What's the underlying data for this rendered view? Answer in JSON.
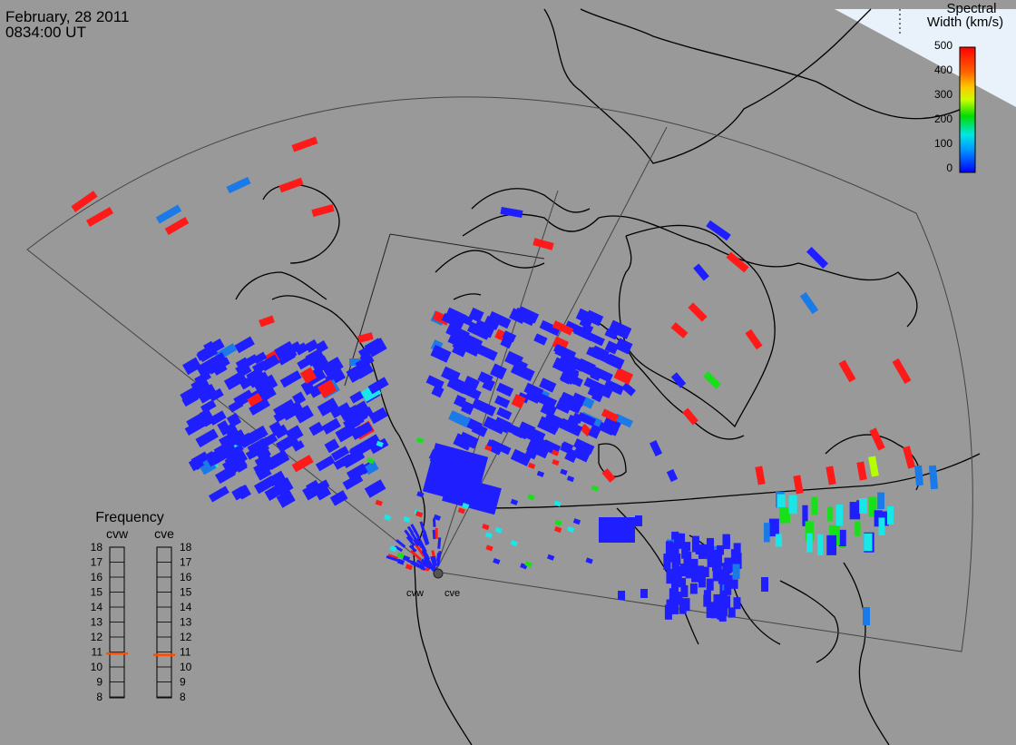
{
  "timestamp": {
    "date": "February, 28 2011",
    "time": "0834:00 UT"
  },
  "colors": {
    "background": "#999999",
    "ice": "#e9f2fa",
    "coast": "#000000"
  },
  "colorbar": {
    "title_line1": "Spectral",
    "title_line2": "Width (km/s)",
    "ticks": [
      "500",
      "400",
      "300",
      "200",
      "100",
      "0"
    ],
    "gradient": [
      "#0000ff",
      "#0096ff",
      "#00e6e6",
      "#00dc00",
      "#c8ff00",
      "#ffc800",
      "#ff6400",
      "#ff0000"
    ]
  },
  "radars": [
    {
      "code": "cvw"
    },
    {
      "code": "cve"
    }
  ],
  "frequency": {
    "title": "Frequency",
    "columns": [
      "cvw",
      "cve"
    ],
    "ticks": [
      "18",
      "17",
      "16",
      "15",
      "14",
      "13",
      "12",
      "11",
      "10",
      "9",
      "8"
    ],
    "values_mhz": [
      10.9,
      10.8
    ],
    "marker_color": "#ff4d00"
  },
  "echo_color_palette": {
    "low": "#1e1eff",
    "mid": "#1a7ae8",
    "cyan": "#19e6e6",
    "green": "#18e018",
    "lime": "#b4ff00",
    "orange": "#ff9900",
    "red": "#ff1a1a"
  }
}
